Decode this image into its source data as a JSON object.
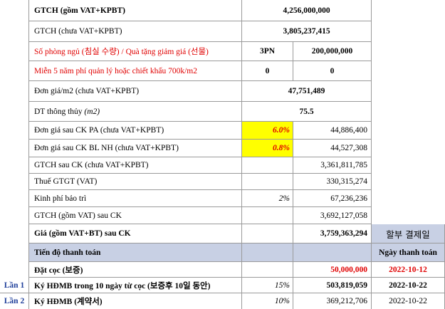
{
  "rows": {
    "gtch_vat": {
      "label": "GTCH (gồm VAT+KPBT)",
      "value": "4,256,000,000"
    },
    "gtch_no_vat": {
      "label": "GTCH (chưa VAT+KPBT)",
      "value": "3,805,237,415"
    },
    "bedrooms": {
      "label": "Số phòng ngủ (침실 수량) / Quà tặng giảm giá (선물)",
      "count": "3PN",
      "value": "200,000,000"
    },
    "free_mgmt": {
      "label": "Miễn 5 năm phí quản lý hoặc chiết khấu 700k/m2",
      "count": "0",
      "value": "0"
    },
    "unit_price": {
      "label": "Đơn giá/m2 (chưa VAT+KPBT)",
      "value": "47,751,489"
    },
    "area": {
      "label_main": "DT thông thủy",
      "label_unit": "(m2)",
      "value": "75.5"
    },
    "price_ck_pa": {
      "label": "Đơn giá sau CK PA (chưa VAT+KPBT)",
      "pct": "6.0%",
      "value": "44,886,400"
    },
    "price_ck_bl": {
      "label": "Đơn giá sau CK BL NH (chưa VAT+KPBT)",
      "pct": "0.8%",
      "value": "44,527,308"
    },
    "gtch_after_ck": {
      "label": "GTCH sau CK (chưa VAT+KPBT)",
      "value": "3,361,811,785"
    },
    "vat_tax": {
      "label": "Thuế GTGT (VAT)",
      "value": "330,315,274"
    },
    "maintenance": {
      "label": "Kinh phí bảo trì",
      "pct": "2%",
      "value": "67,236,236"
    },
    "gtch_vat_after_ck": {
      "label": "GTCH (gồm VAT) sau CK",
      "value": "3,692,127,058"
    },
    "final_price": {
      "label": "Giá (gồm VAT+BT) sau CK",
      "value": "3,759,363,294",
      "extra": "할부 결제일"
    },
    "schedule_header": {
      "label": "Tiến độ thanh toán",
      "extra": "Ngày thanh toán"
    },
    "deposit": {
      "label": "Đặt cọc (보증)",
      "value": "50,000,000",
      "date": "2022-10-12"
    },
    "lan1": {
      "lan": "Lần 1",
      "label": "Ký HĐMB trong 10 ngày từ cọc (보증후 10일 동안)",
      "pct": "15%",
      "value": "503,819,059",
      "date": "2022-10-22"
    },
    "lan2": {
      "lan": "Lần 2",
      "label": "Ký HĐMB (계약서)",
      "pct": "10%",
      "value": "369,212,706",
      "date": "2022-10-22"
    }
  },
  "colors": {
    "red": "#e00000",
    "yellow": "#ffff00",
    "header_blue": "#c8d0e4",
    "lan_blue": "#1f3f9a"
  }
}
